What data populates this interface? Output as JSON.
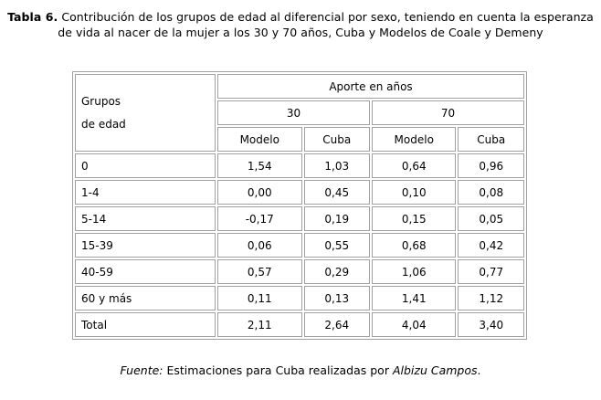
{
  "caption": {
    "label": "Tabla 6.",
    "text": " Contribución de los grupos de edad al diferencial por sexo, teniendo en cuenta la esperanza de vida al nacer de la mujer a los 30 y 70 años, Cuba y Modelos de Coale y Demeny"
  },
  "table": {
    "group_header_line1": "Grupos",
    "group_header_line2": "de edad",
    "contrib_header": "Aporte en años",
    "age_30": "30",
    "age_70": "70",
    "sub_headers": [
      "Modelo",
      "Cuba",
      "Modelo",
      "Cuba"
    ],
    "rows": [
      {
        "group": "0",
        "values": [
          "1,54",
          "1,03",
          "0,64",
          "0,96"
        ]
      },
      {
        "group": "1-4",
        "values": [
          "0,00",
          "0,45",
          "0,10",
          "0,08"
        ]
      },
      {
        "group": "5-14",
        "values": [
          "-0,17",
          "0,19",
          "0,15",
          "0,05"
        ]
      },
      {
        "group": "15-39",
        "values": [
          "0,06",
          "0,55",
          "0,68",
          "0,42"
        ]
      },
      {
        "group": "40-59",
        "values": [
          "0,57",
          "0,29",
          "1,06",
          "0,77"
        ]
      },
      {
        "group": "60 y más",
        "values": [
          "0,11",
          "0,13",
          "1,41",
          "1,12"
        ]
      },
      {
        "group": "Total",
        "values": [
          "2,11",
          "2,64",
          "4,04",
          "3,40"
        ]
      }
    ]
  },
  "footer": {
    "source_label": "Fuente:",
    "text": " Estimaciones para Cuba realizadas por ",
    "author": "Albizu Campos",
    "end": "."
  }
}
